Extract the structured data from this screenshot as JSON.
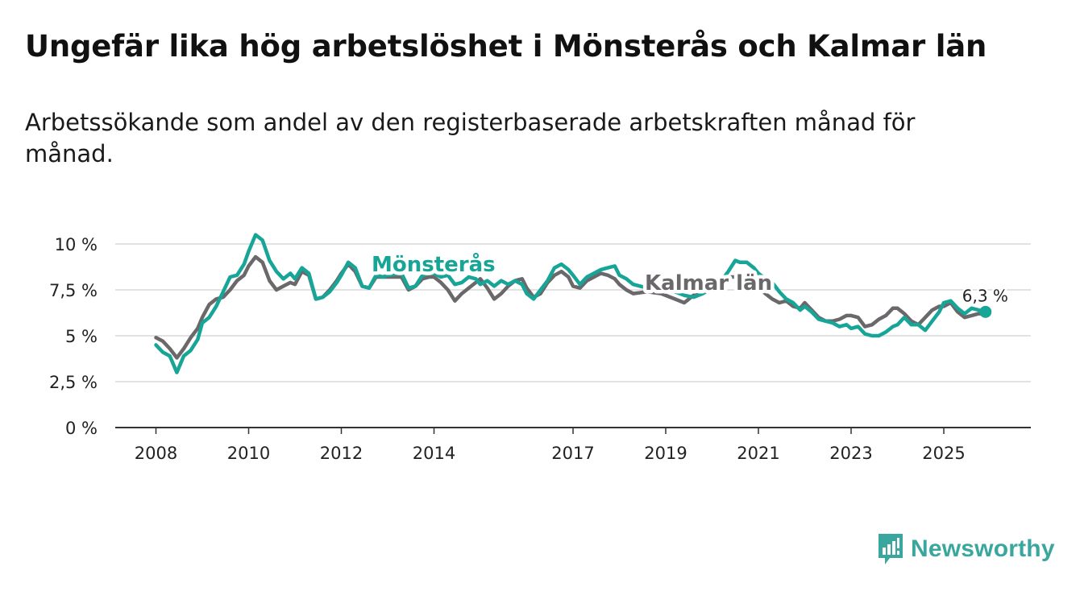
{
  "title": "Ungefär lika hög arbetslöshet i Mönsterås och Kalmar län",
  "subtitle": "Arbetssökande som andel av den registerbaserade arbetskraften månad för månad.",
  "brand": "Newsworthy",
  "colors": {
    "monsteras": "#16a596",
    "kalmar": "#6b686b",
    "grid": "#d9d9d9",
    "axis": "#333333",
    "brand": "#3aa79e"
  },
  "chart_data": {
    "type": "line",
    "title": "Ungefär lika hög arbetslöshet i Mönsterås och Kalmar län",
    "ylim": [
      0,
      10.5
    ],
    "yticks": [
      0,
      2.5,
      5,
      7.5,
      10
    ],
    "ytick_labels": [
      "0 %",
      "2,5 %",
      "5 %",
      "7,5 %",
      "10 %"
    ],
    "xlim": [
      2007.5,
      2026.8
    ],
    "xticks": [
      2008,
      2010,
      2012,
      2014,
      2017,
      2019,
      2021,
      2023,
      2025
    ],
    "xtick_labels": [
      "2008",
      "2010",
      "2012",
      "2014",
      "2017",
      "2019",
      "2021",
      "2023",
      "2025"
    ],
    "end_label": "6,3 %",
    "series": [
      {
        "name": "Mönsterås",
        "label": "Mönsterås",
        "points": [
          [
            2008.0,
            4.5
          ],
          [
            2008.15,
            4.1
          ],
          [
            2008.3,
            3.9
          ],
          [
            2008.45,
            3.0
          ],
          [
            2008.6,
            3.9
          ],
          [
            2008.75,
            4.2
          ],
          [
            2008.9,
            4.8
          ],
          [
            2009.0,
            5.7
          ],
          [
            2009.15,
            6.0
          ],
          [
            2009.3,
            6.6
          ],
          [
            2009.45,
            7.4
          ],
          [
            2009.6,
            8.2
          ],
          [
            2009.75,
            8.3
          ],
          [
            2009.9,
            8.9
          ],
          [
            2010.0,
            9.6
          ],
          [
            2010.15,
            10.5
          ],
          [
            2010.3,
            10.2
          ],
          [
            2010.45,
            9.1
          ],
          [
            2010.6,
            8.5
          ],
          [
            2010.75,
            8.1
          ],
          [
            2010.9,
            8.4
          ],
          [
            2011.0,
            8.1
          ],
          [
            2011.15,
            8.7
          ],
          [
            2011.3,
            8.4
          ],
          [
            2011.45,
            7.0
          ],
          [
            2011.6,
            7.1
          ],
          [
            2011.75,
            7.4
          ],
          [
            2011.9,
            7.9
          ],
          [
            2012.0,
            8.3
          ],
          [
            2012.15,
            9.0
          ],
          [
            2012.3,
            8.7
          ],
          [
            2012.45,
            7.7
          ],
          [
            2012.6,
            7.6
          ],
          [
            2012.75,
            8.3
          ],
          [
            2012.9,
            8.2
          ],
          [
            2013.0,
            8.3
          ],
          [
            2013.3,
            8.4
          ],
          [
            2013.45,
            7.6
          ],
          [
            2013.6,
            7.7
          ],
          [
            2013.75,
            8.3
          ],
          [
            2013.9,
            8.4
          ],
          [
            2014.0,
            8.4
          ],
          [
            2014.15,
            8.2
          ],
          [
            2014.3,
            8.3
          ],
          [
            2014.45,
            7.8
          ],
          [
            2014.6,
            7.9
          ],
          [
            2014.75,
            8.2
          ],
          [
            2014.9,
            8.1
          ],
          [
            2015.0,
            7.8
          ],
          [
            2015.15,
            8.0
          ],
          [
            2015.3,
            7.7
          ],
          [
            2015.45,
            8.0
          ],
          [
            2015.6,
            7.8
          ],
          [
            2015.75,
            8.0
          ],
          [
            2015.9,
            7.8
          ],
          [
            2016.0,
            7.3
          ],
          [
            2016.15,
            7.0
          ],
          [
            2016.3,
            7.5
          ],
          [
            2016.45,
            8.0
          ],
          [
            2016.6,
            8.7
          ],
          [
            2016.75,
            8.9
          ],
          [
            2016.9,
            8.6
          ],
          [
            2017.0,
            8.3
          ],
          [
            2017.15,
            7.8
          ],
          [
            2017.3,
            8.2
          ],
          [
            2017.45,
            8.4
          ],
          [
            2017.6,
            8.6
          ],
          [
            2017.75,
            8.7
          ],
          [
            2017.9,
            8.8
          ],
          [
            2018.0,
            8.3
          ],
          [
            2018.15,
            8.1
          ],
          [
            2018.3,
            7.8
          ],
          [
            2018.6,
            7.6
          ],
          [
            2018.9,
            7.5
          ],
          [
            2019.2,
            7.4
          ],
          [
            2019.4,
            7.2
          ],
          [
            2019.6,
            7.1
          ],
          [
            2019.8,
            7.3
          ],
          [
            2020.0,
            7.6
          ],
          [
            2020.2,
            8.0
          ],
          [
            2020.35,
            8.5
          ],
          [
            2020.5,
            9.1
          ],
          [
            2020.6,
            9.0
          ],
          [
            2020.75,
            9.0
          ],
          [
            2020.9,
            8.7
          ],
          [
            2021.0,
            8.4
          ],
          [
            2021.15,
            8.1
          ],
          [
            2021.3,
            7.9
          ],
          [
            2021.45,
            7.4
          ],
          [
            2021.6,
            7.0
          ],
          [
            2021.75,
            6.8
          ],
          [
            2021.9,
            6.4
          ],
          [
            2022.0,
            6.6
          ],
          [
            2022.15,
            6.3
          ],
          [
            2022.3,
            5.9
          ],
          [
            2022.45,
            5.8
          ],
          [
            2022.6,
            5.7
          ],
          [
            2022.75,
            5.5
          ],
          [
            2022.9,
            5.6
          ],
          [
            2023.0,
            5.4
          ],
          [
            2023.15,
            5.5
          ],
          [
            2023.3,
            5.1
          ],
          [
            2023.45,
            5.0
          ],
          [
            2023.6,
            5.0
          ],
          [
            2023.75,
            5.2
          ],
          [
            2023.9,
            5.5
          ],
          [
            2024.0,
            5.6
          ],
          [
            2024.15,
            6.0
          ],
          [
            2024.3,
            5.6
          ],
          [
            2024.45,
            5.6
          ],
          [
            2024.6,
            5.3
          ],
          [
            2024.75,
            5.8
          ],
          [
            2024.9,
            6.3
          ],
          [
            2025.0,
            6.8
          ],
          [
            2025.15,
            6.9
          ],
          [
            2025.3,
            6.5
          ],
          [
            2025.45,
            6.2
          ],
          [
            2025.6,
            6.5
          ],
          [
            2025.75,
            6.4
          ],
          [
            2025.9,
            6.3
          ]
        ]
      },
      {
        "name": "Kalmar län",
        "label": "Kalmar län",
        "points": [
          [
            2008.0,
            4.9
          ],
          [
            2008.15,
            4.7
          ],
          [
            2008.3,
            4.3
          ],
          [
            2008.45,
            3.8
          ],
          [
            2008.6,
            4.3
          ],
          [
            2008.75,
            4.9
          ],
          [
            2008.9,
            5.4
          ],
          [
            2009.0,
            6.0
          ],
          [
            2009.15,
            6.7
          ],
          [
            2009.3,
            7.0
          ],
          [
            2009.45,
            7.1
          ],
          [
            2009.6,
            7.5
          ],
          [
            2009.75,
            8.0
          ],
          [
            2009.9,
            8.3
          ],
          [
            2010.0,
            8.8
          ],
          [
            2010.15,
            9.3
          ],
          [
            2010.3,
            9.0
          ],
          [
            2010.45,
            8.0
          ],
          [
            2010.6,
            7.5
          ],
          [
            2010.75,
            7.7
          ],
          [
            2010.9,
            7.9
          ],
          [
            2011.0,
            7.8
          ],
          [
            2011.15,
            8.5
          ],
          [
            2011.3,
            8.3
          ],
          [
            2011.45,
            7.0
          ],
          [
            2011.6,
            7.1
          ],
          [
            2011.75,
            7.5
          ],
          [
            2011.9,
            8.0
          ],
          [
            2012.0,
            8.4
          ],
          [
            2012.15,
            8.9
          ],
          [
            2012.3,
            8.5
          ],
          [
            2012.45,
            7.7
          ],
          [
            2012.6,
            7.6
          ],
          [
            2012.75,
            8.2
          ],
          [
            2012.9,
            8.2
          ],
          [
            2013.0,
            8.2
          ],
          [
            2013.3,
            8.2
          ],
          [
            2013.45,
            7.5
          ],
          [
            2013.6,
            7.7
          ],
          [
            2013.75,
            8.1
          ],
          [
            2013.9,
            8.2
          ],
          [
            2014.0,
            8.2
          ],
          [
            2014.15,
            7.9
          ],
          [
            2014.3,
            7.5
          ],
          [
            2014.45,
            6.9
          ],
          [
            2014.6,
            7.3
          ],
          [
            2014.75,
            7.6
          ],
          [
            2014.9,
            7.9
          ],
          [
            2015.0,
            8.1
          ],
          [
            2015.15,
            7.6
          ],
          [
            2015.3,
            7.0
          ],
          [
            2015.45,
            7.3
          ],
          [
            2015.6,
            7.7
          ],
          [
            2015.75,
            8.0
          ],
          [
            2015.9,
            8.1
          ],
          [
            2016.0,
            7.6
          ],
          [
            2016.15,
            7.1
          ],
          [
            2016.3,
            7.3
          ],
          [
            2016.45,
            7.9
          ],
          [
            2016.6,
            8.3
          ],
          [
            2016.75,
            8.5
          ],
          [
            2016.9,
            8.2
          ],
          [
            2017.0,
            7.7
          ],
          [
            2017.15,
            7.6
          ],
          [
            2017.3,
            8.0
          ],
          [
            2017.45,
            8.2
          ],
          [
            2017.6,
            8.4
          ],
          [
            2017.75,
            8.3
          ],
          [
            2017.9,
            8.1
          ],
          [
            2018.0,
            7.8
          ],
          [
            2018.15,
            7.5
          ],
          [
            2018.3,
            7.3
          ],
          [
            2018.6,
            7.4
          ],
          [
            2018.9,
            7.3
          ],
          [
            2019.2,
            7.0
          ],
          [
            2019.4,
            6.8
          ],
          [
            2019.6,
            7.2
          ],
          [
            2019.8,
            7.5
          ],
          [
            2020.0,
            7.8
          ],
          [
            2020.2,
            8.0
          ],
          [
            2020.4,
            8.2
          ],
          [
            2020.6,
            8.2
          ],
          [
            2020.8,
            7.9
          ],
          [
            2021.0,
            7.6
          ],
          [
            2021.15,
            7.3
          ],
          [
            2021.3,
            7.0
          ],
          [
            2021.45,
            6.8
          ],
          [
            2021.6,
            6.9
          ],
          [
            2021.75,
            6.6
          ],
          [
            2021.9,
            6.5
          ],
          [
            2022.0,
            6.8
          ],
          [
            2022.15,
            6.4
          ],
          [
            2022.3,
            6.0
          ],
          [
            2022.45,
            5.8
          ],
          [
            2022.6,
            5.8
          ],
          [
            2022.75,
            5.9
          ],
          [
            2022.9,
            6.1
          ],
          [
            2023.0,
            6.1
          ],
          [
            2023.15,
            6.0
          ],
          [
            2023.3,
            5.5
          ],
          [
            2023.45,
            5.6
          ],
          [
            2023.6,
            5.9
          ],
          [
            2023.75,
            6.1
          ],
          [
            2023.9,
            6.5
          ],
          [
            2024.0,
            6.5
          ],
          [
            2024.15,
            6.2
          ],
          [
            2024.3,
            5.8
          ],
          [
            2024.45,
            5.6
          ],
          [
            2024.6,
            6.0
          ],
          [
            2024.75,
            6.4
          ],
          [
            2024.9,
            6.6
          ],
          [
            2025.0,
            6.6
          ],
          [
            2025.15,
            6.8
          ],
          [
            2025.3,
            6.3
          ],
          [
            2025.45,
            6.0
          ],
          [
            2025.6,
            6.1
          ],
          [
            2025.75,
            6.2
          ],
          [
            2025.9,
            6.2
          ]
        ]
      }
    ]
  }
}
